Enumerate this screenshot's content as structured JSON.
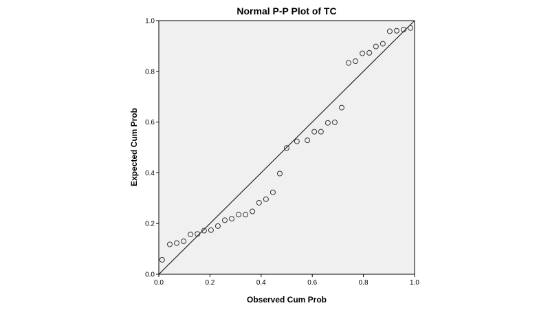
{
  "chart_data": {
    "type": "scatter",
    "title": "Normal P-P Plot of TC",
    "xlabel": "Observed Cum Prob",
    "ylabel": "Expected Cum Prob",
    "xlim": [
      0,
      1
    ],
    "ylim": [
      0,
      1
    ],
    "x_ticks": [
      "0.0",
      "0.2",
      "0.4",
      "0.6",
      "0.8",
      "1.0"
    ],
    "y_ticks": [
      "0.0",
      "0.2",
      "0.4",
      "0.6",
      "0.8",
      "1.0"
    ],
    "grid": false,
    "reference_line": {
      "from": [
        0,
        0
      ],
      "to": [
        1,
        1
      ]
    },
    "colors": {
      "plot_background": "#f0f0f0",
      "marker_stroke": "#333333",
      "line": "#222222"
    },
    "points": [
      {
        "x": 0.013,
        "y": 0.057
      },
      {
        "x": 0.043,
        "y": 0.118
      },
      {
        "x": 0.07,
        "y": 0.123
      },
      {
        "x": 0.097,
        "y": 0.13
      },
      {
        "x": 0.124,
        "y": 0.157
      },
      {
        "x": 0.151,
        "y": 0.159
      },
      {
        "x": 0.177,
        "y": 0.172
      },
      {
        "x": 0.204,
        "y": 0.174
      },
      {
        "x": 0.231,
        "y": 0.19
      },
      {
        "x": 0.258,
        "y": 0.213
      },
      {
        "x": 0.285,
        "y": 0.219
      },
      {
        "x": 0.312,
        "y": 0.235
      },
      {
        "x": 0.339,
        "y": 0.235
      },
      {
        "x": 0.366,
        "y": 0.248
      },
      {
        "x": 0.392,
        "y": 0.282
      },
      {
        "x": 0.419,
        "y": 0.296
      },
      {
        "x": 0.446,
        "y": 0.323
      },
      {
        "x": 0.473,
        "y": 0.397
      },
      {
        "x": 0.5,
        "y": 0.498
      },
      {
        "x": 0.54,
        "y": 0.524
      },
      {
        "x": 0.581,
        "y": 0.528
      },
      {
        "x": 0.608,
        "y": 0.562
      },
      {
        "x": 0.634,
        "y": 0.562
      },
      {
        "x": 0.661,
        "y": 0.597
      },
      {
        "x": 0.688,
        "y": 0.599
      },
      {
        "x": 0.715,
        "y": 0.657
      },
      {
        "x": 0.742,
        "y": 0.833
      },
      {
        "x": 0.769,
        "y": 0.84
      },
      {
        "x": 0.796,
        "y": 0.871
      },
      {
        "x": 0.823,
        "y": 0.873
      },
      {
        "x": 0.849,
        "y": 0.898
      },
      {
        "x": 0.876,
        "y": 0.909
      },
      {
        "x": 0.903,
        "y": 0.958
      },
      {
        "x": 0.93,
        "y": 0.96
      },
      {
        "x": 0.957,
        "y": 0.965
      },
      {
        "x": 0.984,
        "y": 0.971
      }
    ]
  }
}
